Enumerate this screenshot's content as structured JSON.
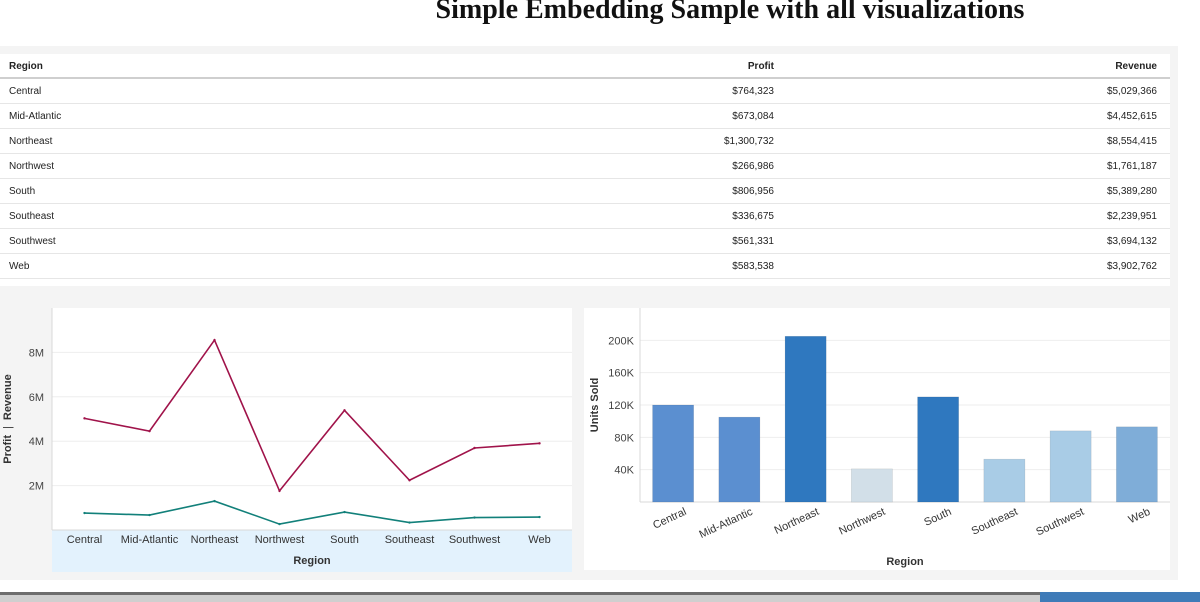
{
  "page": {
    "title": "Simple Embedding Sample with all visualizations"
  },
  "table": {
    "columns": [
      "Region",
      "Profit",
      "Revenue"
    ],
    "rows": [
      [
        "Central",
        "$764,323",
        "$5,029,366"
      ],
      [
        "Mid-Atlantic",
        "$673,084",
        "$4,452,615"
      ],
      [
        "Northeast",
        "$1,300,732",
        "$8,554,415"
      ],
      [
        "Northwest",
        "$266,986",
        "$1,761,187"
      ],
      [
        "South",
        "$806,956",
        "$5,389,280"
      ],
      [
        "Southeast",
        "$336,675",
        "$2,239,951"
      ],
      [
        "Southwest",
        "$561,331",
        "$3,694,132"
      ],
      [
        "Web",
        "$583,538",
        "$3,902,762"
      ]
    ]
  },
  "chart_data": [
    {
      "type": "line",
      "categories": [
        "Central",
        "Mid-Atlantic",
        "Northeast",
        "Northwest",
        "South",
        "Southeast",
        "Southwest",
        "Web"
      ],
      "series": [
        {
          "name": "Revenue",
          "color": "#a0134a",
          "values": [
            5029366,
            4452615,
            8554415,
            1761187,
            5389280,
            2239951,
            3694132,
            3902762
          ]
        },
        {
          "name": "Profit",
          "color": "#12807a",
          "values": [
            764323,
            673084,
            1300732,
            266986,
            806956,
            336675,
            561331,
            583538
          ]
        }
      ],
      "xlabel": "Region",
      "ylabel": {
        "left": "Profit",
        "separator": "|",
        "right": "Revenue"
      },
      "ylim": [
        0,
        10000000
      ],
      "yticks": [
        {
          "value": 2000000,
          "label": "2M"
        },
        {
          "value": 4000000,
          "label": "4M"
        },
        {
          "value": 6000000,
          "label": "6M"
        },
        {
          "value": 8000000,
          "label": "8M"
        }
      ],
      "grid": true,
      "axis_band_color": "#e3f2fd"
    },
    {
      "type": "bar",
      "categories": [
        "Central",
        "Mid-Atlantic",
        "Northeast",
        "Northwest",
        "South",
        "Southeast",
        "Southwest",
        "Web"
      ],
      "values": [
        120000,
        105000,
        205000,
        41000,
        130000,
        53000,
        88000,
        93000
      ],
      "colors": [
        "#5b8fd0",
        "#5b8fd0",
        "#2f78bf",
        "#d2dfe8",
        "#2f78bf",
        "#a9cce6",
        "#a9cce6",
        "#7fadd8"
      ],
      "xlabel": "Region",
      "ylabel": "Units Sold",
      "ylim": [
        0,
        240000
      ],
      "yticks": [
        {
          "value": 40000,
          "label": "40K"
        },
        {
          "value": 80000,
          "label": "80K"
        },
        {
          "value": 120000,
          "label": "120K"
        },
        {
          "value": 160000,
          "label": "160K"
        },
        {
          "value": 200000,
          "label": "200K"
        }
      ],
      "grid": true
    }
  ]
}
